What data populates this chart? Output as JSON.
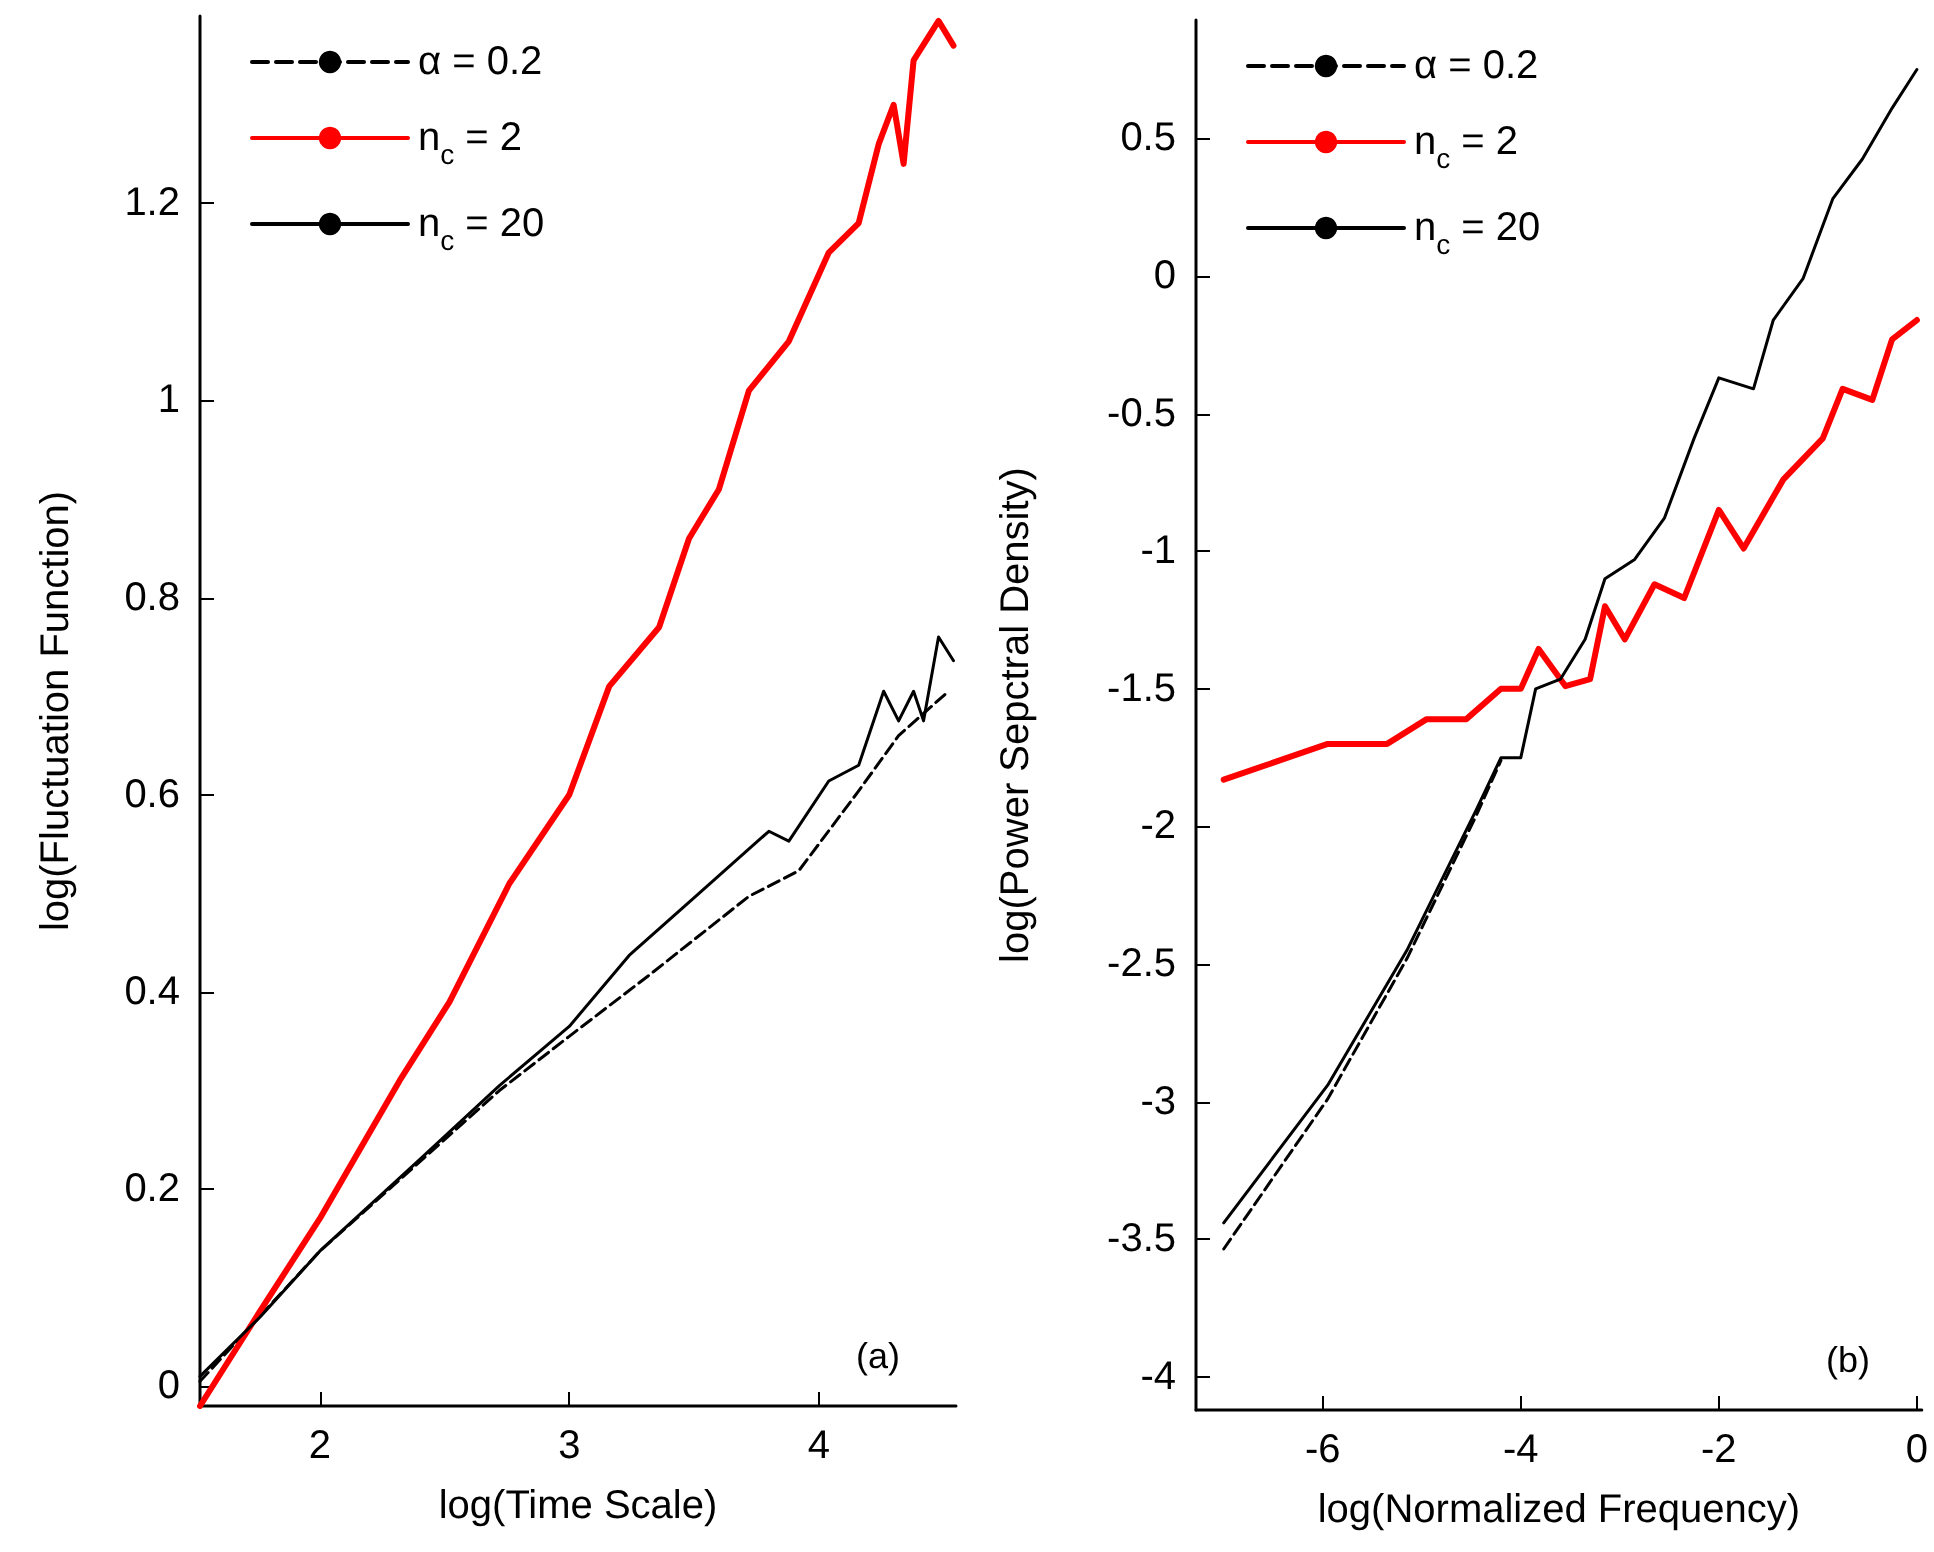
{
  "chart_data": [
    {
      "type": "line",
      "xlabel": "log(Time Scale)",
      "ylabel": "log(Fluctuation Function)",
      "annotations": [
        "(a)"
      ],
      "xlim": [
        1.52,
        4.55
      ],
      "ylim": [
        -0.02,
        1.39
      ],
      "xticks": [
        2,
        3,
        4
      ],
      "yticks": [
        0,
        0.2,
        0.4,
        0.6,
        0.8,
        1,
        1.2
      ],
      "legend": "top left",
      "marker": "none",
      "grid": false,
      "series": [
        {
          "name": "α = 0.2",
          "color": "#000000",
          "line_style": "dashed",
          "x": [
            1.52,
            2.0,
            2.72,
            3.0,
            3.32,
            3.72,
            3.92,
            4.16,
            4.32,
            4.52
          ],
          "values": [
            0.005,
            0.137,
            0.3,
            0.355,
            0.417,
            0.497,
            0.523,
            0.604,
            0.66,
            0.705
          ]
        },
        {
          "name": "n$_{c}$ = 2",
          "color": "#ff0000",
          "line_style": "solid",
          "x": [
            1.52,
            1.76,
            2.0,
            2.32,
            2.52,
            2.76,
            3.0,
            3.16,
            3.36,
            3.48,
            3.6,
            3.72,
            3.88,
            4.04,
            4.16,
            4.24,
            4.3,
            4.34,
            4.38,
            4.48,
            4.54
          ],
          "values": [
            -0.02,
            0.076,
            0.17,
            0.31,
            0.39,
            0.51,
            0.6,
            0.71,
            0.77,
            0.86,
            0.91,
            1.01,
            1.06,
            1.15,
            1.18,
            1.26,
            1.3,
            1.24,
            1.345,
            1.385,
            1.36
          ]
        },
        {
          "name": "n$_{c}$ = 20",
          "color": "#000000",
          "line_style": "solid",
          "x": [
            1.52,
            1.76,
            2.0,
            2.4,
            2.72,
            3.0,
            3.24,
            3.52,
            3.8,
            3.88,
            4.04,
            4.16,
            4.26,
            4.32,
            4.38,
            4.42,
            4.48,
            4.54
          ],
          "values": [
            0.01,
            0.07,
            0.137,
            0.23,
            0.305,
            0.365,
            0.437,
            0.5,
            0.563,
            0.553,
            0.614,
            0.63,
            0.705,
            0.675,
            0.705,
            0.675,
            0.76,
            0.736
          ]
        }
      ]
    },
    {
      "type": "line",
      "xlabel": "log(Normalized Frequency)",
      "ylabel": "log(Power Sepctral Density)",
      "annotations": [
        "(b)"
      ],
      "xlim": [
        -7.28,
        0.05
      ],
      "ylim": [
        -4.12,
        0.93
      ],
      "xticks": [
        -6,
        -4,
        -2,
        0
      ],
      "yticks": [
        -4,
        -3.5,
        -3,
        -2.5,
        -2,
        -1.5,
        -1,
        -0.5,
        0,
        0.5
      ],
      "legend": "top left",
      "marker": "none",
      "grid": false,
      "series": [
        {
          "name": "α = 0.2",
          "color": "#000000",
          "line_style": "dashed",
          "x": [
            -7,
            -5.95,
            -5.15,
            -4.45,
            -4.2
          ],
          "values": [
            -3.535,
            -2.99,
            -2.48,
            -1.96,
            -1.76
          ]
        },
        {
          "name": "n$_{c}$ = 2",
          "color": "#ff0000",
          "line_style": "solid",
          "x": [
            -7,
            -5.95,
            -5.35,
            -4.95,
            -4.55,
            -4.2,
            -4.0,
            -3.82,
            -3.55,
            -3.3,
            -3.15,
            -2.95,
            -2.65,
            -2.35,
            -2.0,
            -1.75,
            -1.35,
            -0.95,
            -0.75,
            -0.45,
            -0.25,
            0
          ],
          "values": [
            -1.83,
            -1.7,
            -1.7,
            -1.61,
            -1.61,
            -1.5,
            -1.5,
            -1.355,
            -1.49,
            -1.465,
            -1.2,
            -1.32,
            -1.12,
            -1.17,
            -0.85,
            -0.99,
            -0.74,
            -0.59,
            -0.41,
            -0.45,
            -0.23,
            -0.16
          ]
        },
        {
          "name": "n$_{c}$ = 20",
          "color": "#000000",
          "line_style": "solid",
          "x": [
            -7,
            -5.95,
            -5.15,
            -4.45,
            -4.2,
            -4.0,
            -3.85,
            -3.6,
            -3.35,
            -3.15,
            -2.85,
            -2.55,
            -2.25,
            -2.0,
            -1.65,
            -1.45,
            -1.15,
            -0.85,
            -0.55,
            -0.25,
            0
          ],
          "values": [
            -3.44,
            -2.94,
            -2.45,
            -1.94,
            -1.75,
            -1.75,
            -1.5,
            -1.465,
            -1.32,
            -1.1,
            -1.03,
            -0.88,
            -0.59,
            -0.37,
            -0.41,
            -0.16,
            -0.01,
            0.28,
            0.425,
            0.61,
            0.75
          ]
        }
      ]
    }
  ]
}
